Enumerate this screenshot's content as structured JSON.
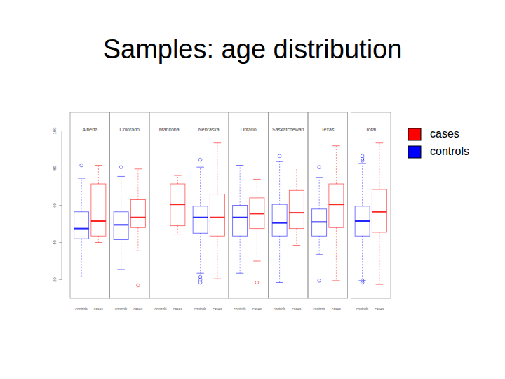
{
  "chart_data": {
    "type": "box",
    "title": "Samples: age distribution",
    "categories": [
      "Alberta",
      "Colorado",
      "Manitoba",
      "Nebraska",
      "Ontario",
      "Saskatchewan",
      "Texas",
      "Total"
    ],
    "ylim": [
      10,
      110
    ],
    "yticks": [
      20,
      40,
      60,
      80,
      100
    ],
    "legend": "right",
    "series": [
      {
        "name": "cases",
        "color": "#ff0000",
        "boxes": [
          {
            "min": 40,
            "q1": 43.5,
            "median": 51.5,
            "q3": 71.5,
            "max": 81.5,
            "outliers": []
          },
          {
            "min": 35.5,
            "q1": 48,
            "median": 53.5,
            "q3": 63,
            "max": 79.5,
            "outliers": [
              17
            ]
          },
          {
            "min": 44.5,
            "q1": 49,
            "median": 60.5,
            "q3": 71.5,
            "max": 76,
            "outliers": []
          },
          {
            "min": 20.5,
            "q1": 43.5,
            "median": 53.5,
            "q3": 66,
            "max": 93.5,
            "outliers": []
          },
          {
            "min": 30,
            "q1": 47.5,
            "median": 55.5,
            "q3": 64,
            "max": 74,
            "outliers": [
              18.5
            ]
          },
          {
            "min": 38.5,
            "q1": 47.5,
            "median": 56,
            "q3": 68,
            "max": 80,
            "outliers": []
          },
          {
            "min": 19.5,
            "q1": 48,
            "median": 60.5,
            "q3": 71.5,
            "max": 92,
            "outliers": []
          },
          {
            "min": 17.5,
            "q1": 45.5,
            "median": 56.5,
            "q3": 68.5,
            "max": 93.5,
            "outliers": []
          }
        ]
      },
      {
        "name": "controls",
        "color": "#0000ff",
        "boxes": [
          {
            "min": 21.5,
            "q1": 42,
            "median": 47.5,
            "q3": 56.5,
            "max": 74.5,
            "outliers": [
              81.5
            ]
          },
          {
            "min": 25.5,
            "q1": 41.5,
            "median": 49.5,
            "q3": 56.5,
            "max": 75.5,
            "outliers": [
              80.5
            ]
          },
          null,
          {
            "min": 23.5,
            "q1": 45,
            "median": 53.5,
            "q3": 59.5,
            "max": 80.5,
            "outliers": [
              84.5,
              21.5,
              20,
              18.5
            ]
          },
          {
            "min": 23.5,
            "q1": 43.5,
            "median": 53.5,
            "q3": 60,
            "max": 81.5,
            "outliers": []
          },
          {
            "min": 18.5,
            "q1": 43.5,
            "median": 50.5,
            "q3": 60.5,
            "max": 83.5,
            "outliers": [
              86.5
            ]
          },
          {
            "min": 33.5,
            "q1": 43.5,
            "median": 51,
            "q3": 58,
            "max": 75,
            "outliers": [
              80.5,
              19.5
            ]
          },
          {
            "min": 19.5,
            "q1": 43.5,
            "median": 51.5,
            "q3": 59.5,
            "max": 82.5,
            "outliers": [
              86.5,
              85,
              84,
              19.5,
              18.5
            ]
          }
        ]
      }
    ]
  }
}
